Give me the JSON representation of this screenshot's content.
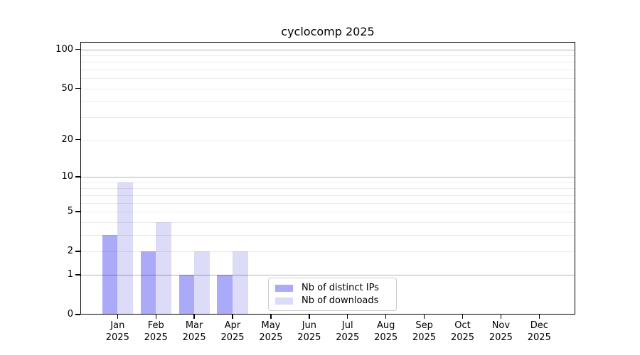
{
  "title": "cyclocomp 2025",
  "colors": {
    "background": "#ffffff",
    "axis": "#000000",
    "text": "#000000",
    "grid_major": "rgba(0,0,0,0.30)",
    "grid_minor": "rgba(0,0,0,0.08)",
    "legend_border": "#cccccc",
    "bar_distinct_ips": "#aaaaf8",
    "bar_downloads": "#dcdcf8"
  },
  "chart_data": {
    "type": "bar",
    "title": "cyclocomp 2025",
    "categories": [
      "Jan",
      "Feb",
      "Mar",
      "Apr",
      "May",
      "Jun",
      "Jul",
      "Aug",
      "Sep",
      "Oct",
      "Nov",
      "Dec"
    ],
    "category_sublabel": "2025",
    "series": [
      {
        "name": "Nb of distinct IPs",
        "color": "#aaaaf8",
        "values": [
          3,
          2,
          1,
          1,
          0,
          0,
          0,
          0,
          0,
          0,
          0,
          0
        ]
      },
      {
        "name": "Nb of downloads",
        "color": "#dcdcf8",
        "values": [
          9,
          4,
          2,
          2,
          0,
          0,
          0,
          0,
          0,
          0,
          0,
          0
        ]
      }
    ],
    "yscale": "log1p",
    "ylim": [
      0,
      113
    ],
    "yticks": [
      0,
      1,
      2,
      5,
      10,
      20,
      50,
      100
    ],
    "ytick_labels": [
      "0",
      "1",
      "2",
      "5",
      "10",
      "20",
      "50",
      "100"
    ],
    "grid_major_at": [
      1,
      10,
      100
    ],
    "grid_minor_at": [
      2,
      3,
      4,
      5,
      6,
      7,
      8,
      9,
      20,
      30,
      40,
      50,
      60,
      70,
      80,
      90
    ],
    "grid": true,
    "legend_position": "lower center",
    "legend_items": [
      "Nb of distinct IPs",
      "Nb of downloads"
    ]
  }
}
